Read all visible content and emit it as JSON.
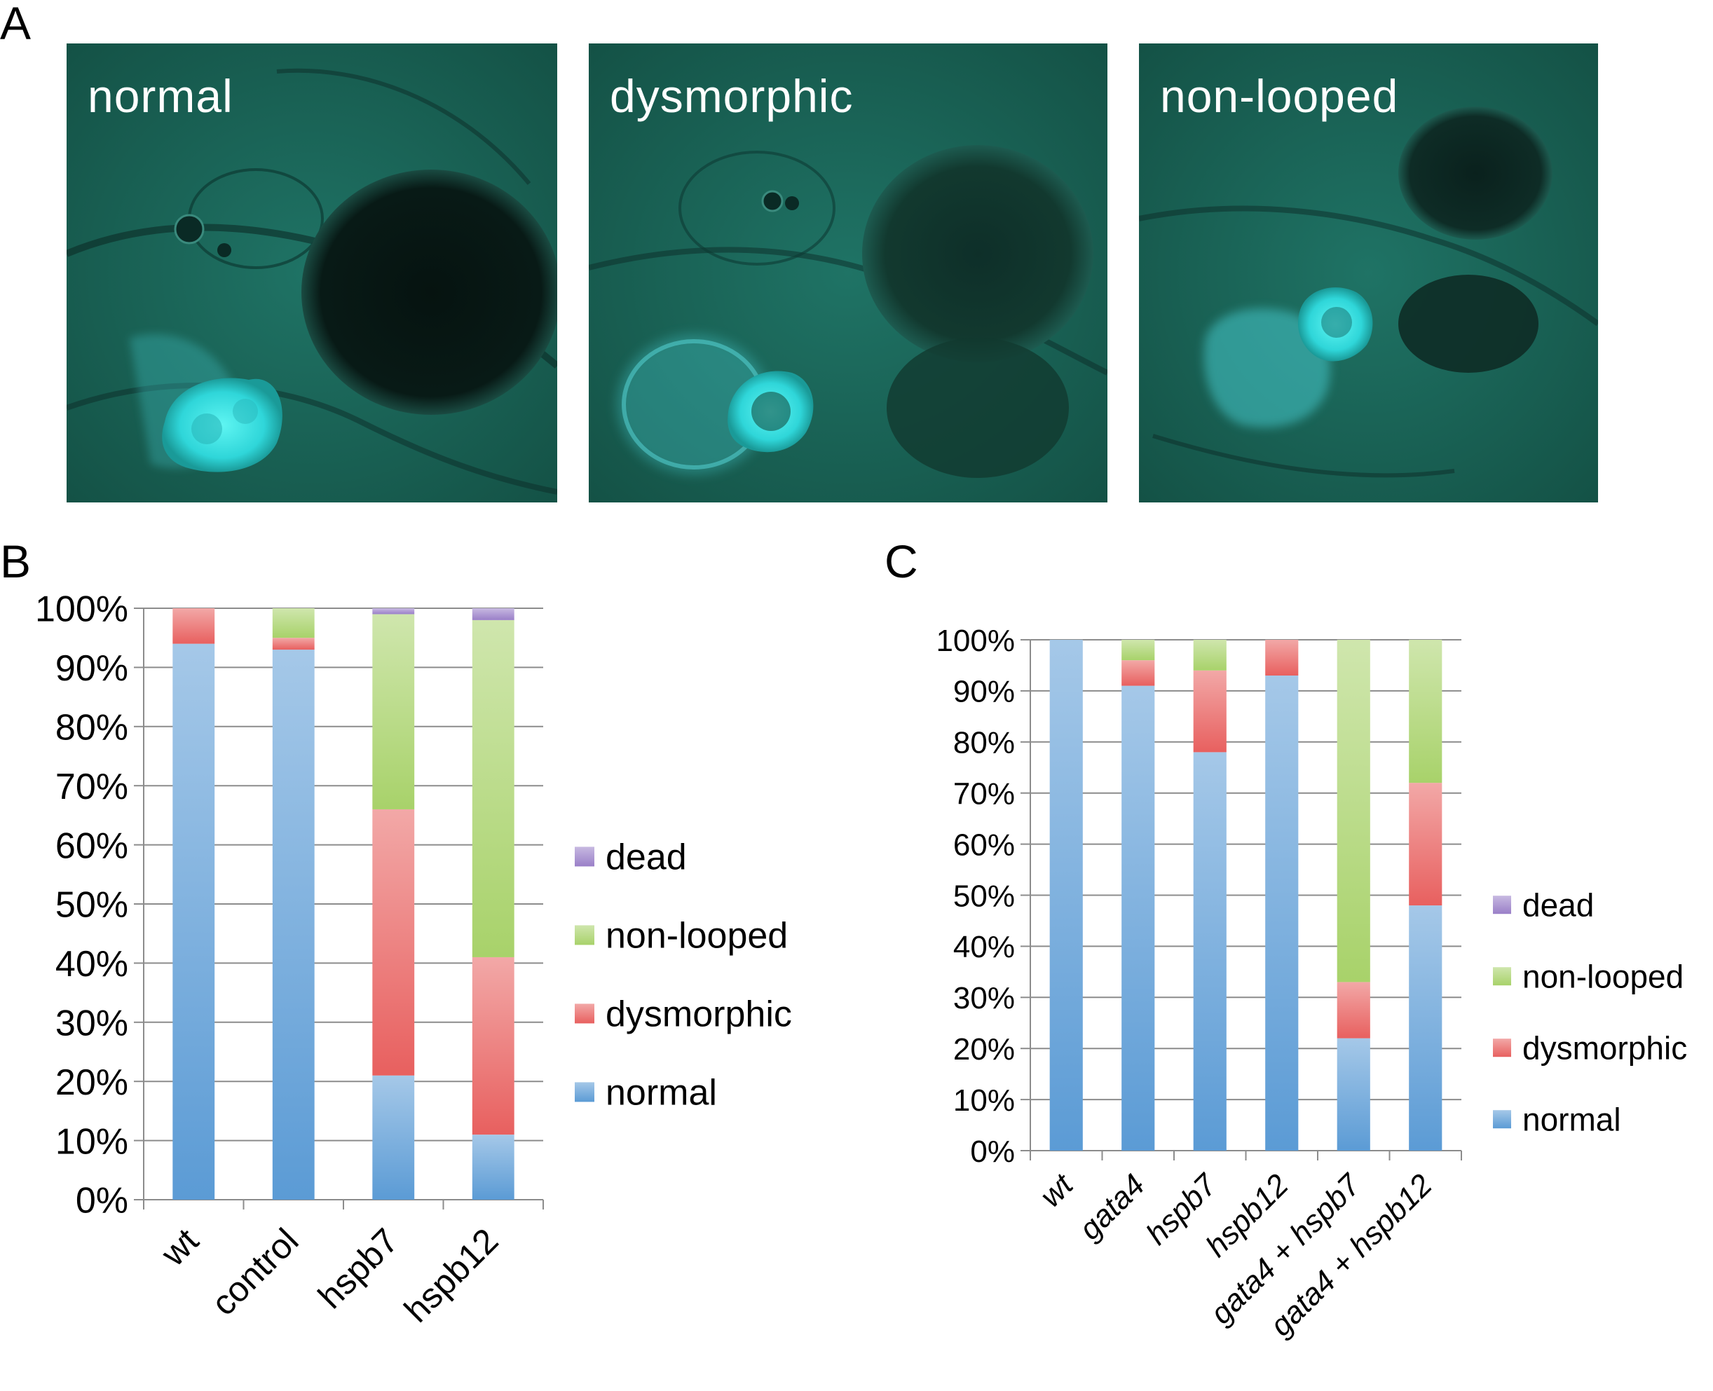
{
  "panels": {
    "a": {
      "letter": "A"
    },
    "b": {
      "letter": "B"
    },
    "c": {
      "letter": "C"
    }
  },
  "micrographs": [
    {
      "label": "normal",
      "heart_color": "#3fe3e6"
    },
    {
      "label": "dysmorphic",
      "heart_color": "#3fe3e6"
    },
    {
      "label": "non-looped",
      "heart_color": "#3fe3e6"
    }
  ],
  "colors": {
    "normal": "#5b9bd5",
    "dysmorphic": "#e8605f",
    "non-looped": "#a8d26a",
    "dead": "#9a7fc8",
    "background_tissue": "#1d6b5e"
  },
  "chart_data": [
    {
      "type": "bar",
      "stacked": true,
      "percent": true,
      "categories": [
        "wt",
        "control",
        "hspb7",
        "hspb12"
      ],
      "category_italic": false,
      "series": [
        {
          "name": "normal",
          "values": [
            94,
            93,
            21,
            11
          ]
        },
        {
          "name": "dysmorphic",
          "values": [
            6,
            2,
            45,
            30
          ]
        },
        {
          "name": "non-looped",
          "values": [
            0,
            5,
            33,
            57
          ]
        },
        {
          "name": "dead",
          "values": [
            0,
            0,
            1,
            2
          ]
        }
      ],
      "ylim": [
        0,
        100
      ],
      "yticks": [
        "0%",
        "10%",
        "20%",
        "30%",
        "40%",
        "50%",
        "60%",
        "70%",
        "80%",
        "90%",
        "100%"
      ],
      "grid": true,
      "legend": "right",
      "legend_order": [
        "dead",
        "non-looped",
        "dysmorphic",
        "normal"
      ]
    },
    {
      "type": "bar",
      "stacked": true,
      "percent": true,
      "categories": [
        "wt",
        "gata4",
        "hspb7",
        "hspb12",
        "gata4 + hspb7",
        "gata4 + hspb12"
      ],
      "category_italic": true,
      "series": [
        {
          "name": "normal",
          "values": [
            100,
            91,
            78,
            93,
            22,
            48
          ]
        },
        {
          "name": "dysmorphic",
          "values": [
            0,
            5,
            16,
            7,
            11,
            24
          ]
        },
        {
          "name": "non-looped",
          "values": [
            0,
            4,
            6,
            0,
            67,
            28
          ]
        },
        {
          "name": "dead",
          "values": [
            0,
            0,
            0,
            0,
            0,
            0
          ]
        }
      ],
      "ylim": [
        0,
        100
      ],
      "yticks": [
        "0%",
        "10%",
        "20%",
        "30%",
        "40%",
        "50%",
        "60%",
        "70%",
        "80%",
        "90%",
        "100%"
      ],
      "grid": true,
      "legend": "right",
      "legend_order": [
        "dead",
        "non-looped",
        "dysmorphic",
        "normal"
      ]
    }
  ]
}
